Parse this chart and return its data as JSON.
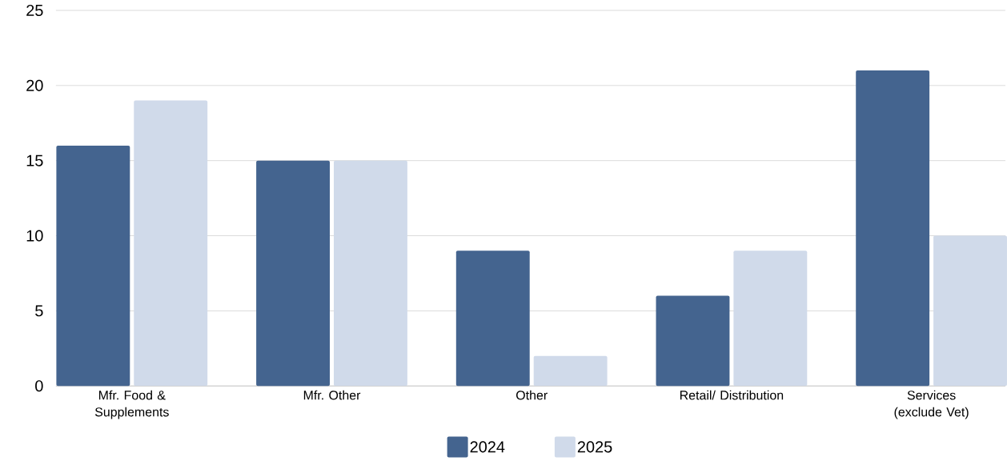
{
  "chart_data": {
    "type": "bar",
    "categories": [
      "Mfr. Food & Supplements",
      "Mfr. Other",
      "Other",
      "Retail/ Distribution",
      "Services (exclude Vet)"
    ],
    "series": [
      {
        "name": "2024",
        "color": "#44648f",
        "values": [
          16,
          15,
          9,
          6,
          21
        ]
      },
      {
        "name": "2025",
        "color": "#d0daea",
        "values": [
          19,
          15,
          2,
          9,
          10
        ]
      }
    ],
    "ylim": [
      0,
      25
    ],
    "yticks": [
      0,
      5,
      10,
      15,
      20,
      25
    ],
    "grid": "y",
    "legend": "bottom"
  }
}
